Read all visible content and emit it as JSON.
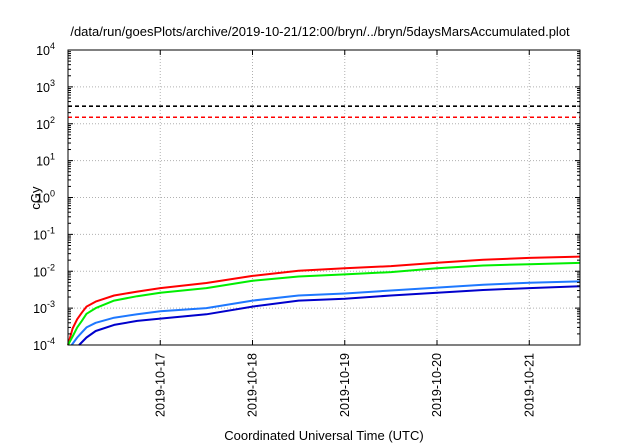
{
  "chart_data": {
    "type": "line",
    "title": "/data/run/goesPlots/archive/2019-10-21/12:00/bryn/../bryn/5daysMarsAccumulated.plot",
    "xlabel": "Coordinated Universal Time (UTC)",
    "ylabel": "cGy",
    "yscale": "log",
    "ylim": [
      0.0001,
      10000
    ],
    "xlim": [
      16.0,
      21.55
    ],
    "x_unit": "day of October 2019",
    "x_ticks": [
      {
        "x": 17,
        "label": "2019-10-17"
      },
      {
        "x": 18,
        "label": "2019-10-18"
      },
      {
        "x": 19,
        "label": "2019-10-19"
      },
      {
        "x": 20,
        "label": "2019-10-20"
      },
      {
        "x": 21,
        "label": "2019-10-21"
      }
    ],
    "y_ticks": [
      {
        "value": 0.0001,
        "base": "10",
        "exp": "-4"
      },
      {
        "value": 0.001,
        "base": "10",
        "exp": "-3"
      },
      {
        "value": 0.01,
        "base": "10",
        "exp": "-2"
      },
      {
        "value": 0.1,
        "base": "10",
        "exp": "-1"
      },
      {
        "value": 1,
        "base": "10",
        "exp": "0"
      },
      {
        "value": 10,
        "base": "10",
        "exp": "1"
      },
      {
        "value": 100,
        "base": "10",
        "exp": "2"
      },
      {
        "value": 1000,
        "base": "10",
        "exp": "3"
      },
      {
        "value": 10000,
        "base": "10",
        "exp": "4"
      }
    ],
    "grid": true,
    "legend": "none",
    "reference_lines": [
      {
        "y": 300,
        "color": "#000000",
        "style": "dashed"
      },
      {
        "y": 150,
        "color": "#ff0000",
        "style": "dashed"
      }
    ],
    "series": [
      {
        "color": "#ff0000",
        "x": [
          16.0,
          16.05,
          16.1,
          16.15,
          16.2,
          16.3,
          16.5,
          16.75,
          17.0,
          17.5,
          18.0,
          18.5,
          19.0,
          19.5,
          20.0,
          20.5,
          21.0,
          21.55
        ],
        "y": [
          0.0001,
          0.00028,
          0.0005,
          0.00075,
          0.0011,
          0.0015,
          0.0022,
          0.0028,
          0.0035,
          0.0048,
          0.0075,
          0.0103,
          0.012,
          0.0138,
          0.017,
          0.0205,
          0.023,
          0.025
        ]
      },
      {
        "color": "#00ee00",
        "x": [
          16.0,
          16.05,
          16.1,
          16.15,
          16.2,
          16.3,
          16.5,
          16.75,
          17.0,
          17.5,
          18.0,
          18.5,
          19.0,
          19.5,
          20.0,
          20.5,
          21.0,
          21.55
        ],
        "y": [
          0.0001,
          0.00017,
          0.0003,
          0.00045,
          0.0007,
          0.001,
          0.0016,
          0.0021,
          0.0026,
          0.0035,
          0.0055,
          0.0072,
          0.0082,
          0.0095,
          0.012,
          0.0143,
          0.0155,
          0.0168
        ]
      },
      {
        "color": "#1e78ff",
        "x": [
          16.04,
          16.1,
          16.15,
          16.2,
          16.3,
          16.5,
          16.75,
          17.0,
          17.5,
          18.0,
          18.5,
          19.0,
          19.5,
          20.0,
          20.5,
          21.0,
          21.55
        ],
        "y": [
          0.0001,
          0.00016,
          0.00022,
          0.0003,
          0.0004,
          0.00055,
          0.00068,
          0.00082,
          0.001,
          0.0016,
          0.0022,
          0.0025,
          0.003,
          0.0036,
          0.0043,
          0.0049,
          0.0053
        ]
      },
      {
        "color": "#0000cc",
        "x": [
          16.12,
          16.2,
          16.3,
          16.5,
          16.75,
          17.0,
          17.5,
          18.0,
          18.5,
          19.0,
          19.5,
          20.0,
          20.5,
          21.0,
          21.55
        ],
        "y": [
          0.0001,
          0.00016,
          0.00024,
          0.00035,
          0.00045,
          0.00052,
          0.00068,
          0.0011,
          0.0016,
          0.0018,
          0.0022,
          0.0026,
          0.0031,
          0.0035,
          0.0039
        ]
      }
    ]
  }
}
